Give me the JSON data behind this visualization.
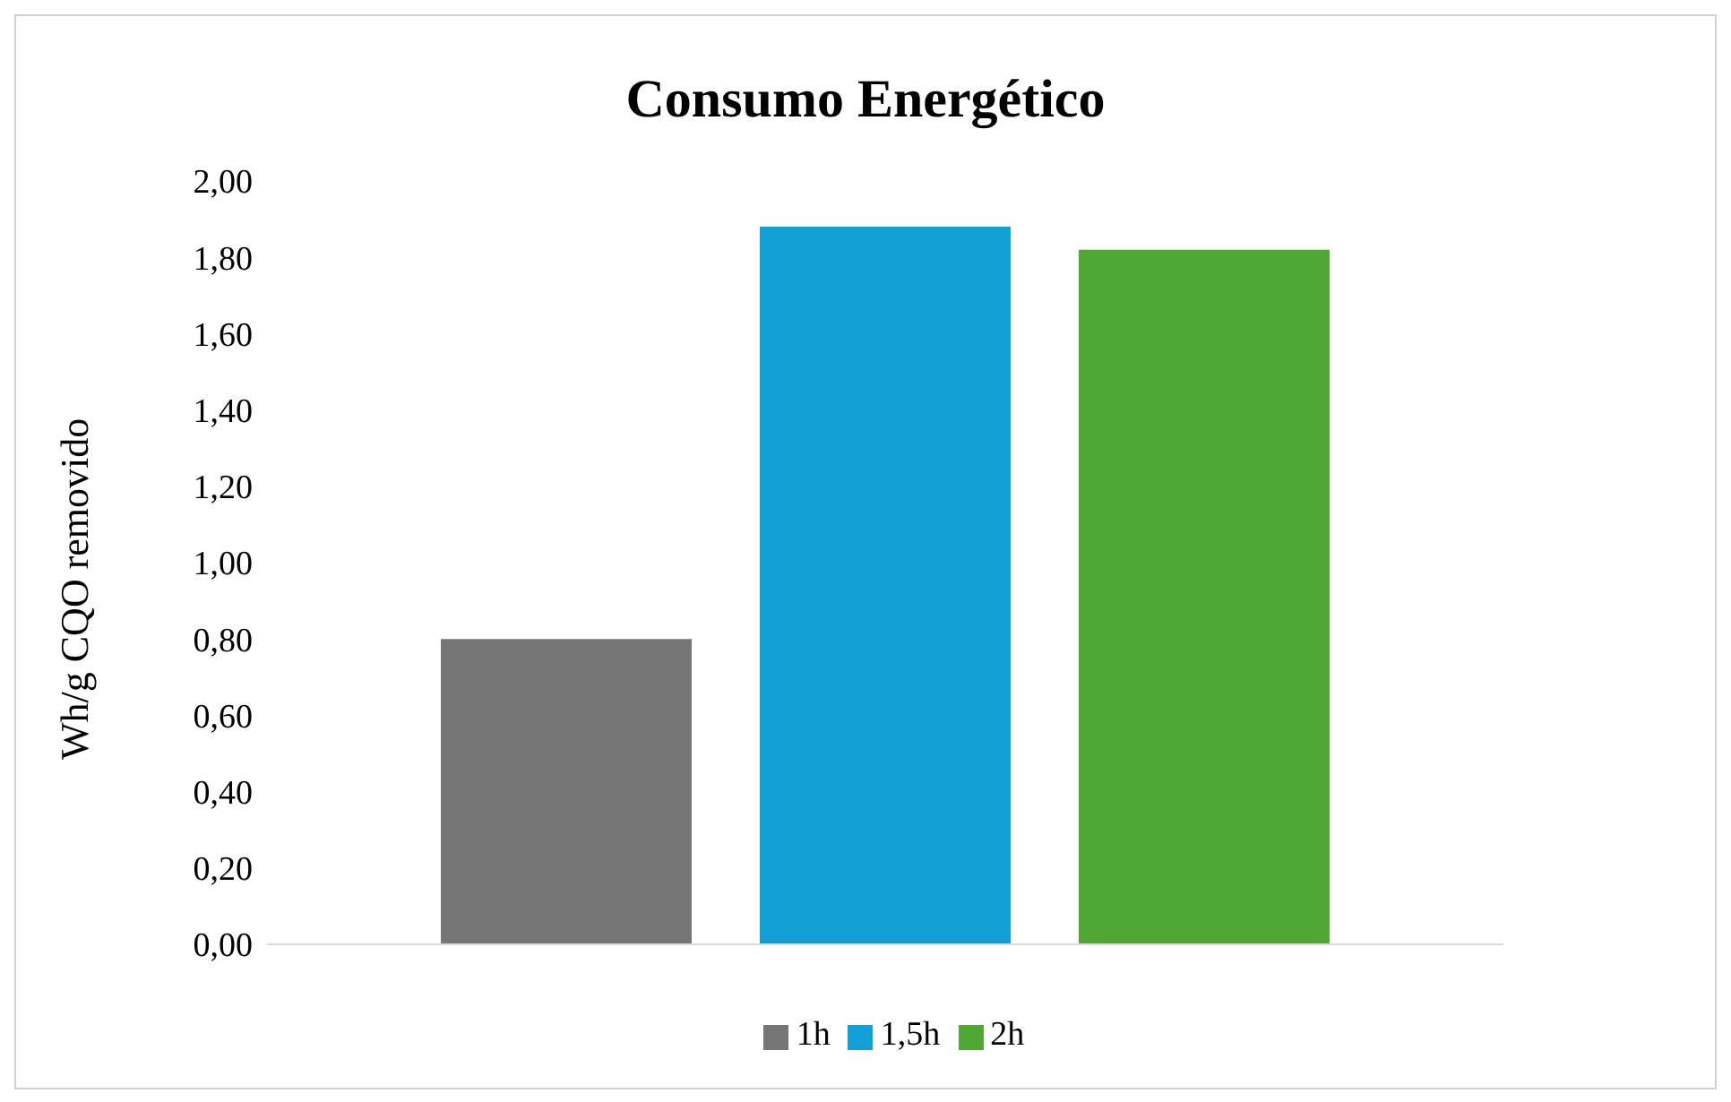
{
  "chart_data": {
    "type": "bar",
    "title": "Consumo Energético",
    "ylabel": "Wh/g CQO removido",
    "categories": [
      null
    ],
    "series": [
      {
        "name": "1h",
        "color": "#767676",
        "values": [
          0.8
        ]
      },
      {
        "name": "1,5h",
        "color": "#119fd6",
        "values": [
          1.88
        ]
      },
      {
        "name": "2h",
        "color": "#4fa833",
        "values": [
          1.82
        ]
      }
    ],
    "ylim": [
      0,
      2
    ],
    "yticks": [
      {
        "value": 0,
        "label": "0,00"
      },
      {
        "value": 0.2,
        "label": "0,20"
      },
      {
        "value": 0.4,
        "label": "0,40"
      },
      {
        "value": 0.6,
        "label": "0,60"
      },
      {
        "value": 0.8,
        "label": "0,80"
      },
      {
        "value": 1,
        "label": "1,00"
      },
      {
        "value": 1.2,
        "label": "1,20"
      },
      {
        "value": 1.4,
        "label": "1,40"
      },
      {
        "value": 1.6,
        "label": "1,60"
      },
      {
        "value": 1.8,
        "label": "1,80"
      },
      {
        "value": 2,
        "label": "2,00"
      }
    ],
    "grid": false,
    "legend": "bottom"
  }
}
